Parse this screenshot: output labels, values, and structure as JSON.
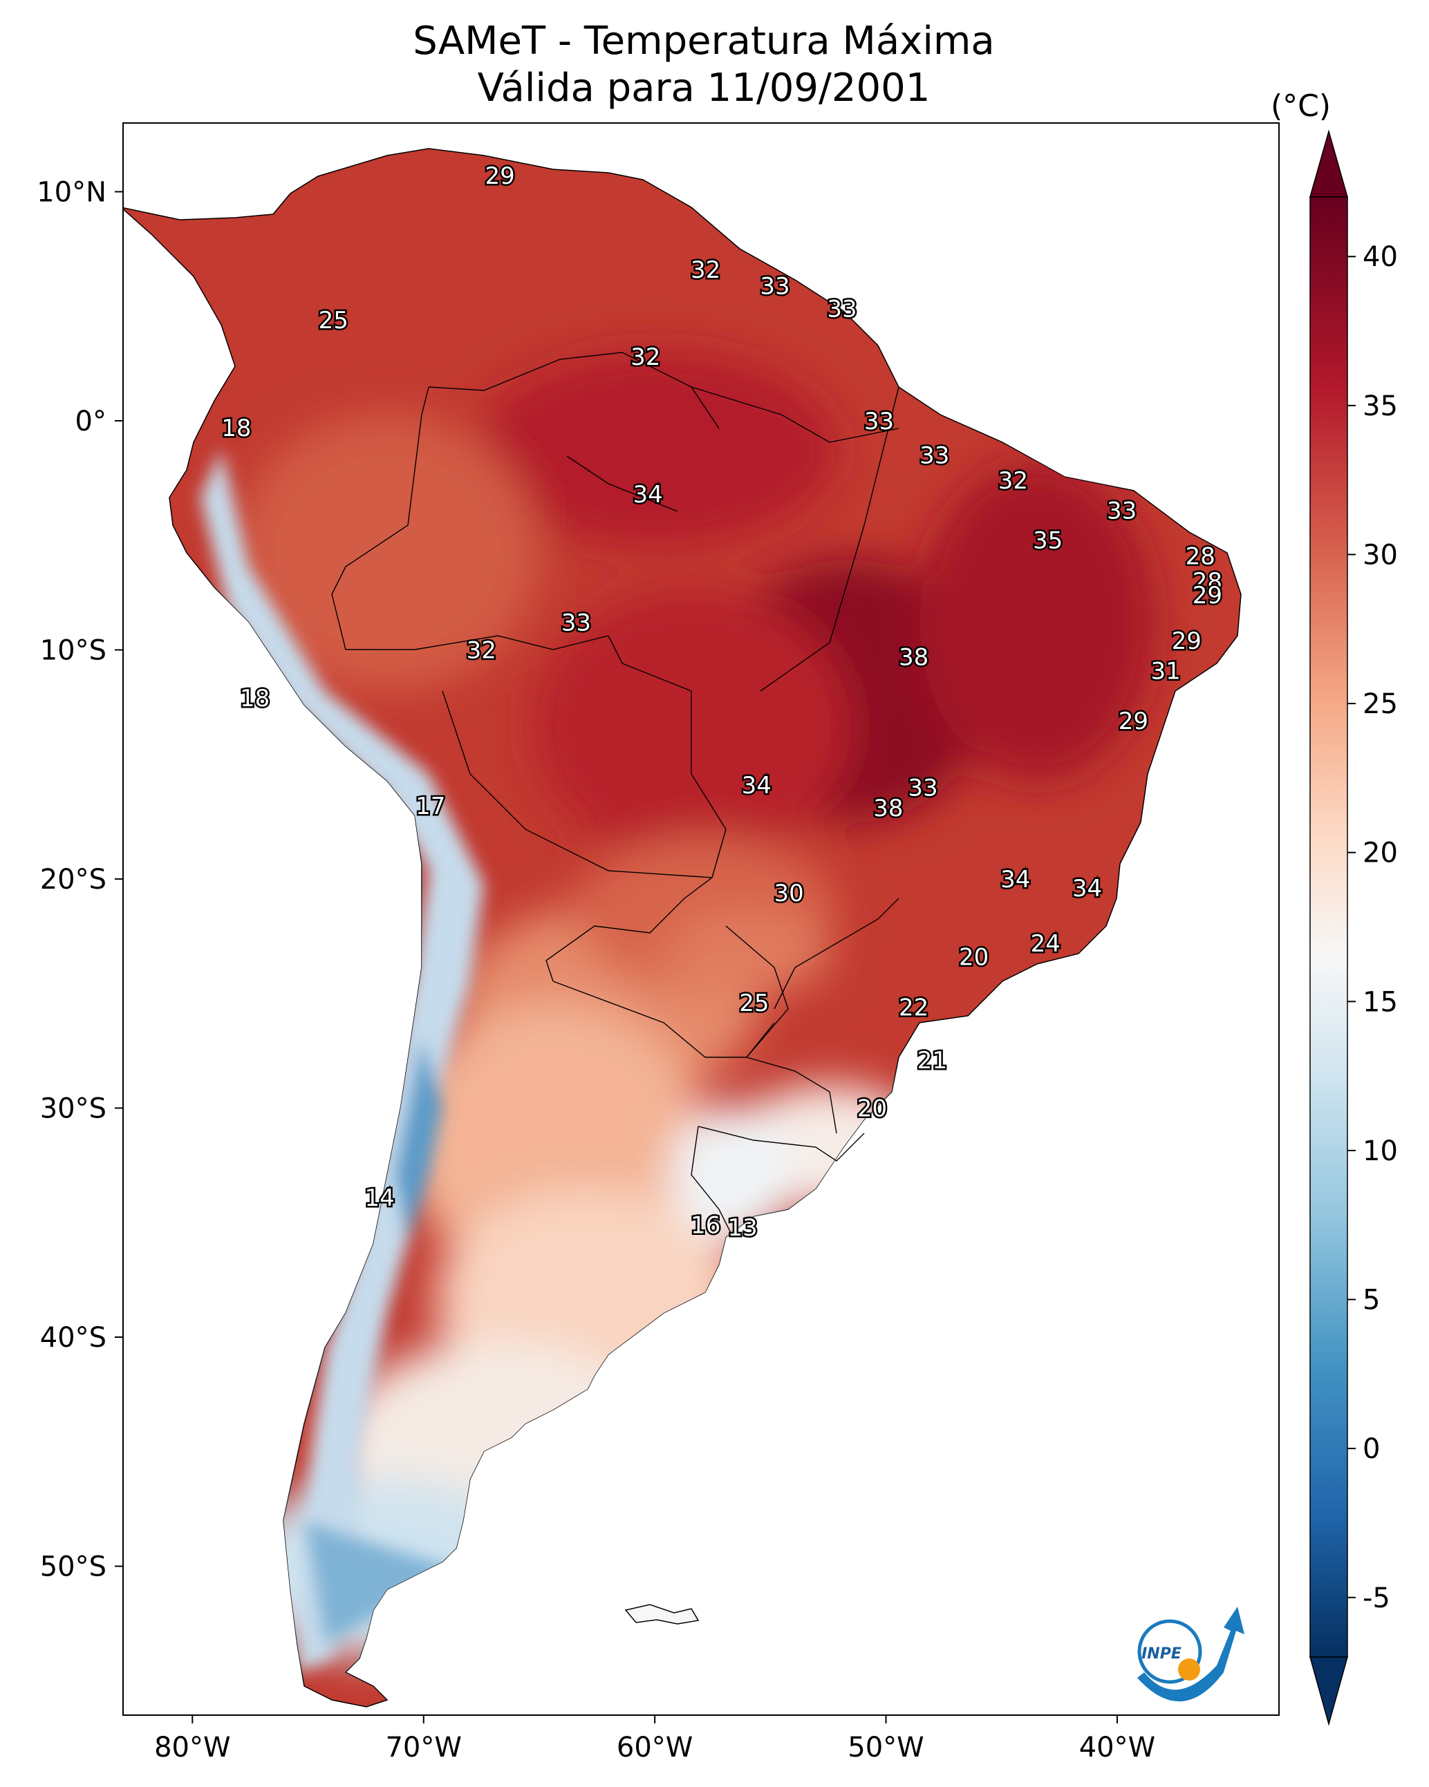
{
  "title": {
    "line1": "SAMeT - Temperatura Máxima",
    "line2": "Válida para 11/09/2001"
  },
  "axes": {
    "lon_labels": [
      "80°W",
      "70°W",
      "60°W",
      "50°W",
      "40°W"
    ],
    "lat_labels": [
      "10°N",
      "0°",
      "10°S",
      "20°S",
      "30°S",
      "40°S",
      "50°S"
    ]
  },
  "colorbar": {
    "unit": "(°C)",
    "min": -7,
    "max": 42,
    "ticks": [
      "40",
      "35",
      "30",
      "25",
      "20",
      "15",
      "10",
      "5",
      "0",
      "-5"
    ],
    "extend": "both",
    "colors": [
      "#053061",
      "#2166ac",
      "#4393c3",
      "#92c5de",
      "#d1e5f0",
      "#f7f7f7",
      "#fddbc7",
      "#f4a582",
      "#d6604d",
      "#b2182b",
      "#67001f"
    ]
  },
  "logo": {
    "text": "INPE",
    "accent_color": "#1a7bbf",
    "dot_color": "#f39c12"
  },
  "map_data": {
    "region": "South America",
    "variable": "maximum temperature",
    "extent": {
      "lon_min": -83,
      "lon_max": -33,
      "lat_min": -56.5,
      "lat_max": 13
    },
    "contour_labels": [
      {
        "value": "29",
        "lon": -66.7,
        "lat": 10.7
      },
      {
        "value": "32",
        "lon": -57.8,
        "lat": 6.6
      },
      {
        "value": "33",
        "lon": -54.8,
        "lat": 5.9
      },
      {
        "value": "33",
        "lon": -51.9,
        "lat": 4.9
      },
      {
        "value": "25",
        "lon": -73.9,
        "lat": 4.4
      },
      {
        "value": "32",
        "lon": -60.4,
        "lat": 2.8
      },
      {
        "value": "33",
        "lon": -50.3,
        "lat": 0.0
      },
      {
        "value": "18",
        "lon": -78.1,
        "lat": -0.3
      },
      {
        "value": "33",
        "lon": -47.9,
        "lat": -1.5
      },
      {
        "value": "32",
        "lon": -44.5,
        "lat": -2.6
      },
      {
        "value": "34",
        "lon": -60.3,
        "lat": -3.2
      },
      {
        "value": "33",
        "lon": -39.8,
        "lat": -3.9
      },
      {
        "value": "35",
        "lon": -43.0,
        "lat": -5.2
      },
      {
        "value": "28",
        "lon": -36.4,
        "lat": -5.9
      },
      {
        "value": "28",
        "lon": -36.1,
        "lat": -7.0
      },
      {
        "value": "29",
        "lon": -36.1,
        "lat": -7.6
      },
      {
        "value": "33",
        "lon": -63.4,
        "lat": -8.8
      },
      {
        "value": "32",
        "lon": -67.5,
        "lat": -10.0
      },
      {
        "value": "38",
        "lon": -48.8,
        "lat": -10.3
      },
      {
        "value": "29",
        "lon": -37.0,
        "lat": -9.6
      },
      {
        "value": "31",
        "lon": -37.9,
        "lat": -10.9
      },
      {
        "value": "18",
        "lon": -77.3,
        "lat": -12.1
      },
      {
        "value": "29",
        "lon": -39.3,
        "lat": -13.1
      },
      {
        "value": "34",
        "lon": -55.6,
        "lat": -15.9
      },
      {
        "value": "33",
        "lon": -48.4,
        "lat": -16.0
      },
      {
        "value": "38",
        "lon": -49.9,
        "lat": -16.9
      },
      {
        "value": "17",
        "lon": -69.7,
        "lat": -16.8
      },
      {
        "value": "34",
        "lon": -44.4,
        "lat": -20.0
      },
      {
        "value": "34",
        "lon": -41.3,
        "lat": -20.4
      },
      {
        "value": "30",
        "lon": -54.2,
        "lat": -20.6
      },
      {
        "value": "24",
        "lon": -43.1,
        "lat": -22.8
      },
      {
        "value": "20",
        "lon": -46.2,
        "lat": -23.4
      },
      {
        "value": "25",
        "lon": -55.7,
        "lat": -25.4
      },
      {
        "value": "22",
        "lon": -48.8,
        "lat": -25.6
      },
      {
        "value": "21",
        "lon": -48.0,
        "lat": -27.9
      },
      {
        "value": "20",
        "lon": -50.6,
        "lat": -30.0
      },
      {
        "value": "14",
        "lon": -71.9,
        "lat": -33.9
      },
      {
        "value": "16",
        "lon": -57.8,
        "lat": -35.1
      },
      {
        "value": "13",
        "lon": -56.2,
        "lat": -35.2
      }
    ]
  }
}
